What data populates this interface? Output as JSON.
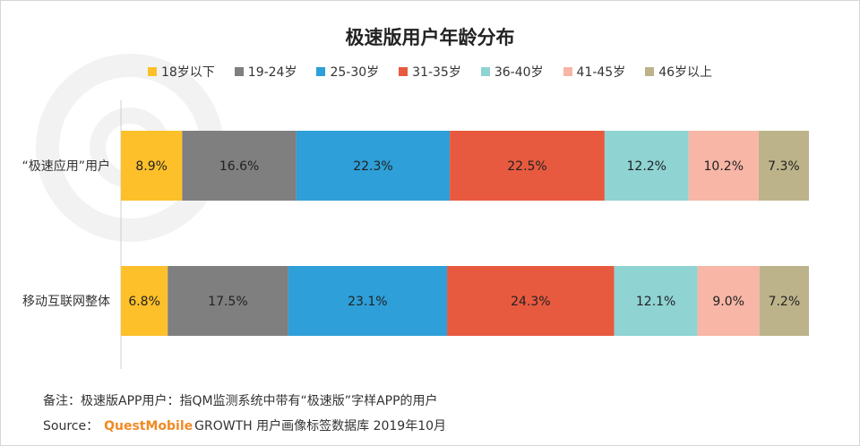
{
  "chart_data": {
    "type": "bar",
    "orientation": "horizontal",
    "stacked": true,
    "normalized_percent": true,
    "title": "极速版用户年龄分布",
    "categories": [
      "“极速应用”用户",
      "移动互联网整体"
    ],
    "series": [
      {
        "name": "18岁以下",
        "color": "#FDC02A",
        "values": [
          8.9,
          6.8
        ]
      },
      {
        "name": "19-24岁",
        "color": "#7F7F7F",
        "values": [
          16.6,
          17.5
        ]
      },
      {
        "name": "25-30岁",
        "color": "#2E9FD8",
        "values": [
          22.3,
          23.1
        ]
      },
      {
        "name": "31-35岁",
        "color": "#E85A3F",
        "values": [
          22.5,
          24.3
        ]
      },
      {
        "name": "36-40岁",
        "color": "#8FD3D3",
        "values": [
          12.2,
          12.1
        ]
      },
      {
        "name": "41-45岁",
        "color": "#F7B6A6",
        "values": [
          10.2,
          9.0
        ]
      },
      {
        "name": "46岁以上",
        "color": "#BDB38A",
        "values": [
          7.3,
          7.2
        ]
      }
    ],
    "value_suffix": "%",
    "legend_position": "top",
    "grid": false
  },
  "footer": {
    "note": "备注：极速版APP用户：指QM监测系统中带有“极速版”字样APP的用户",
    "source_label": "Source：",
    "source_brand": "QuestMobile",
    "source_rest": "GROWTH 用户画像标签数据库 2019年10月"
  }
}
